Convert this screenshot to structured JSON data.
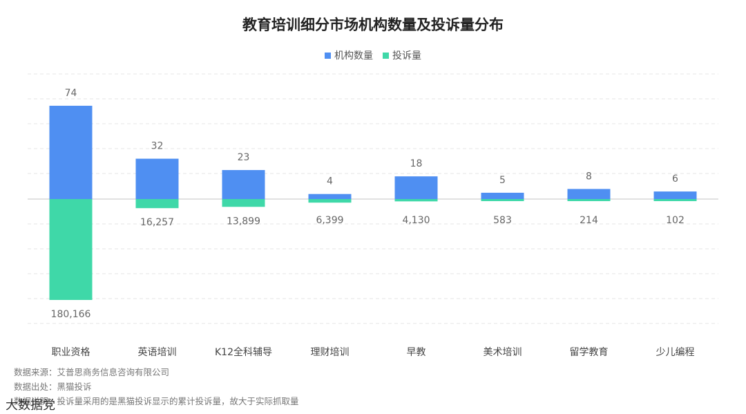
{
  "chart_data": {
    "type": "bar",
    "title": "教育培训细分市场机构数量及投诉量分布",
    "categories": [
      "职业资格",
      "英语培训",
      "K12全科辅导",
      "理财培训",
      "早教",
      "美术培训",
      "留学教育",
      "少儿编程"
    ],
    "series": [
      {
        "name": "机构数量",
        "color": "#4f8ff2",
        "direction": "up",
        "values": [
          74,
          32,
          23,
          4,
          18,
          5,
          8,
          6
        ],
        "labels": [
          "74",
          "32",
          "23",
          "4",
          "18",
          "5",
          "8",
          "6"
        ]
      },
      {
        "name": "投诉量",
        "color": "#3fd8a8",
        "direction": "down",
        "values": [
          180166,
          16257,
          13899,
          6399,
          4130,
          583,
          214,
          102
        ],
        "labels": [
          "180,166",
          "16,257",
          "13,899",
          "6,399",
          "4,130",
          "583",
          "214",
          "102"
        ]
      }
    ],
    "legend_position": "top-center",
    "grid": "dashed-horizontal"
  },
  "notes": [
    "数据来源：艾普思商务信息咨询有限公司",
    "数据出处：黑猫投诉",
    "数据说明：投诉量采用的是黑猫投诉显示的累计投诉量，故大于实际抓取量"
  ],
  "watermark": "大数据党"
}
